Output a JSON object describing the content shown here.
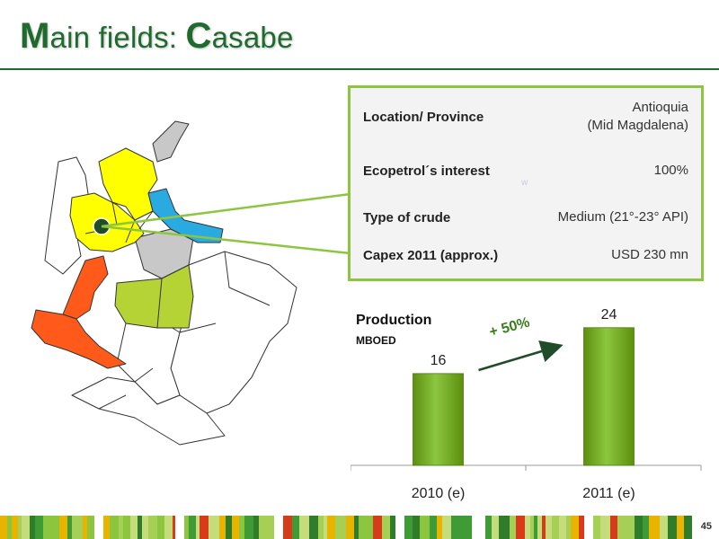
{
  "header": {
    "title_cap1": "M",
    "title_rest1": "ain fields: ",
    "title_cap2": "C",
    "title_rest2": "asabe"
  },
  "info": {
    "rows": [
      {
        "label": "Location/ Province",
        "value_line1": "Antioquia",
        "value_line2": "(Mid Magdalena)"
      },
      {
        "label": "Ecopetrol´s interest",
        "value_line1": "100%"
      },
      {
        "label": "Type of crude",
        "value_line1": "Medium (21°-23° API)"
      },
      {
        "label": "Capex 2011 (approx.)",
        "value_line1": "USD 230 mn"
      }
    ],
    "faint_mark": "w"
  },
  "chart_data": {
    "type": "bar",
    "title": "Production",
    "unit": "MBOED",
    "categories": [
      "2010 (e)",
      "2011 (e)"
    ],
    "values": [
      16,
      24
    ],
    "annotation": "+ 50%",
    "bar_color": "#7ab317"
  },
  "colors": {
    "accent_green": "#1f6b2e",
    "box_border": "#8cc63f",
    "map_yellow": "#ffff00",
    "map_blue": "#29abe2",
    "map_orange": "#ff5a1a",
    "map_lightgreen": "#b5d334",
    "map_gray": "#c8c8c8"
  },
  "page": {
    "number": "45"
  }
}
